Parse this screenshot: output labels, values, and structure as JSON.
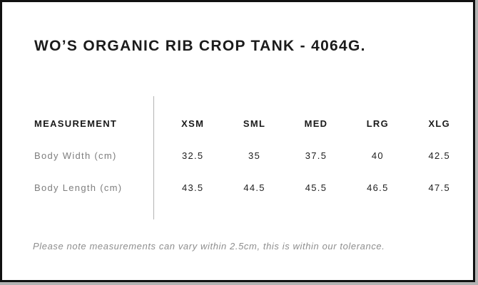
{
  "page": {
    "title": "WO’S ORGANIC RIB CROP TANK - 4064G."
  },
  "size_chart": {
    "measurement_header": "MEASUREMENT",
    "sizes": [
      "XSM",
      "SML",
      "MED",
      "LRG",
      "XLG"
    ],
    "rows": [
      {
        "label": "Body Width (cm)",
        "values": [
          "32.5",
          "35",
          "37.5",
          "40",
          "42.5"
        ]
      },
      {
        "label": "Body Length (cm)",
        "values": [
          "43.5",
          "44.5",
          "45.5",
          "46.5",
          "47.5"
        ]
      }
    ]
  },
  "note": "Please note measurements can vary within 2.5cm, this is within our tolerance.",
  "colors": {
    "border": "#111111",
    "title_text": "#1b1b1b",
    "header_text": "#1a1a1a",
    "label_text": "#7e7e7e",
    "value_text": "#212121",
    "note_text": "#8e8e8e",
    "divider": "#b4b4b4",
    "background": "#ffffff"
  }
}
